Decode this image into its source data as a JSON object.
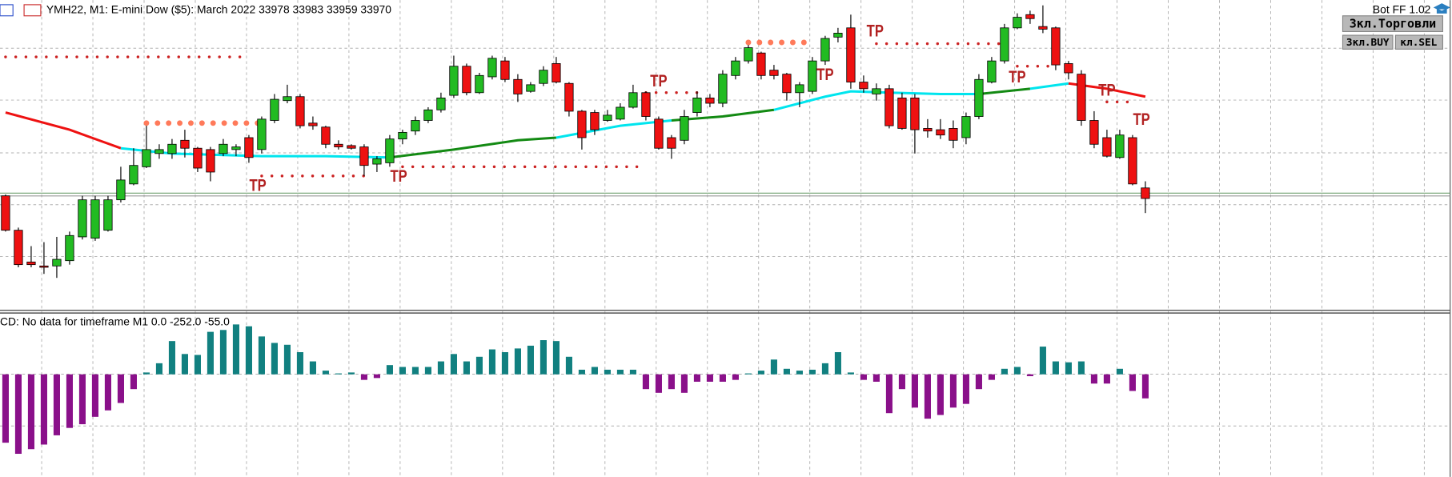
{
  "chart_data": {
    "type": "candlestick",
    "title": "YMH22, M1:  E-mini Dow ($5): March 2022  33978 33983 33959 33970",
    "bot_label": "Bot FF 1.02",
    "buttons": [
      "Зкл.Торговли",
      "Зкл.BUY",
      "кл.SEL"
    ],
    "indicator_label": "CD: No data for timeframe M1 0.0 -252.0 -55.0",
    "ylim": [
      33886,
      34120
    ],
    "open": [
      33972,
      33946,
      33922,
      33919,
      33919,
      33923,
      33941,
      33940,
      33946,
      33969,
      33981,
      33994,
      34004,
      34004,
      34014,
      34008,
      34007,
      34004,
      34007,
      34016,
      34007,
      34029,
      34044,
      34047,
      34027,
      34024,
      34011,
      34010,
      34009,
      33996,
      33997,
      34015,
      34021,
      34029,
      34037,
      34048,
      34070,
      34050,
      34062,
      34074,
      34060,
      34051,
      34057,
      34072,
      34057,
      34036,
      34035,
      34029,
      34030,
      34039,
      34050,
      34030,
      34016,
      34014,
      34035,
      34046,
      34042,
      34063,
      34074,
      34080,
      34067,
      34064,
      34050,
      34051,
      34074,
      34092,
      34099,
      34058,
      34049,
      34053,
      34046,
      34046,
      34023,
      34022,
      34023,
      34016,
      34032,
      34058,
      34074,
      34099,
      34109,
      34100,
      34099,
      34072,
      34064,
      34029,
      34016,
      34001,
      34016,
      33978
    ],
    "high": [
      33973,
      33948,
      33934,
      33937,
      33941,
      33945,
      33972,
      33972,
      33972,
      33994,
      34008,
      34025,
      34011,
      34015,
      34022,
      34009,
      34009,
      34015,
      34011,
      34018,
      34032,
      34049,
      34056,
      34049,
      34032,
      34025,
      34014,
      34011,
      34011,
      34002,
      34018,
      34022,
      34032,
      34039,
      34050,
      34078,
      34072,
      34065,
      34078,
      34077,
      34064,
      34058,
      34070,
      34077,
      34058,
      34037,
      34037,
      34037,
      34042,
      34056,
      34051,
      34032,
      34018,
      34037,
      34051,
      34049,
      34067,
      34077,
      34086,
      34081,
      34071,
      34065,
      34058,
      34077,
      34093,
      34099,
      34109,
      34063,
      34057,
      34056,
      34050,
      34049,
      34030,
      34030,
      34029,
      34035,
      34064,
      34077,
      34102,
      34110,
      34112,
      34116,
      34100,
      34074,
      34067,
      34036,
      34022,
      34022,
      34018,
      33983
    ],
    "low": [
      33945,
      33918,
      33918,
      33913,
      33910,
      33920,
      33939,
      33938,
      33945,
      33967,
      33980,
      33993,
      34000,
      34000,
      34001,
      33990,
      33983,
      34002,
      34002,
      33997,
      34004,
      34027,
      34042,
      34023,
      34022,
      34008,
      34007,
      34007,
      33987,
      33990,
      33994,
      34011,
      34018,
      34027,
      34035,
      34046,
      34048,
      34049,
      34060,
      34058,
      34043,
      34050,
      34055,
      34057,
      34032,
      34007,
      34018,
      34028,
      34029,
      34038,
      34029,
      34007,
      34000,
      34011,
      34032,
      34039,
      34039,
      34060,
      34072,
      34060,
      34060,
      34044,
      34039,
      34049,
      34071,
      34088,
      34053,
      34050,
      34044,
      34023,
      34022,
      34004,
      34016,
      34015,
      34008,
      34011,
      34030,
      34057,
      34072,
      34098,
      34102,
      34095,
      34067,
      34060,
      34025,
      34008,
      34001,
      34000,
      33980,
      33959
    ],
    "close": [
      33946,
      33920,
      33920,
      33918,
      33924,
      33942,
      33969,
      33969,
      33969,
      33984,
      33995,
      34007,
      34007,
      34011,
      34008,
      33993,
      33990,
      34011,
      34009,
      34001,
      34030,
      34045,
      34047,
      34025,
      34025,
      34011,
      34009,
      34008,
      33995,
      34000,
      34015,
      34020,
      34029,
      34037,
      34046,
      34070,
      34050,
      34063,
      34076,
      34060,
      34049,
      34056,
      34067,
      34058,
      34036,
      34016,
      34022,
      34033,
      34039,
      34050,
      34032,
      34008,
      34008,
      34032,
      34046,
      34042,
      34064,
      34074,
      34084,
      34063,
      34063,
      34050,
      34056,
      34074,
      34091,
      34095,
      34058,
      34053,
      34053,
      34025,
      34023,
      34022,
      34021,
      34018,
      34014,
      34032,
      34060,
      34074,
      34099,
      34107,
      34106,
      34098,
      34071,
      34065,
      34029,
      34011,
      34002,
      34018,
      33981,
      33970
    ],
    "up_color": "#22bb22",
    "down_color": "#ee1111",
    "lines": [
      {
        "color": "#ee1111",
        "x": [
          0,
          5,
          9
        ],
        "values": [
          34035,
          34022,
          34008
        ]
      },
      {
        "color": "#00e5ee",
        "x": [
          9,
          13,
          20,
          25,
          30
        ],
        "values": [
          34008,
          34004,
          34002,
          34002,
          34001
        ]
      },
      {
        "color": "#138a13",
        "x": [
          30,
          35,
          40,
          43
        ],
        "values": [
          34001,
          34007,
          34014,
          34016
        ]
      },
      {
        "color": "#00e5ee",
        "x": [
          43,
          48,
          52
        ],
        "values": [
          34016,
          34025,
          34029
        ]
      },
      {
        "color": "#138a13",
        "x": [
          52,
          56,
          60
        ],
        "values": [
          34029,
          34032,
          34037
        ]
      },
      {
        "color": "#00e5ee",
        "x": [
          60,
          64,
          66,
          69,
          73,
          76
        ],
        "values": [
          34037,
          34047,
          34051,
          34050,
          34049,
          34049
        ]
      },
      {
        "color": "#138a13",
        "x": [
          76,
          80
        ],
        "values": [
          34049,
          34053
        ]
      },
      {
        "color": "#00e5ee",
        "x": [
          80,
          83
        ],
        "values": [
          34053,
          34057
        ]
      },
      {
        "color": "#ee1111",
        "x": [
          83,
          86,
          89
        ],
        "values": [
          34057,
          34053,
          34047
        ]
      }
    ],
    "levels": [
      {
        "value": 34077,
        "from": 0,
        "to": 19,
        "color": "#cc2222"
      },
      {
        "value": 34027,
        "from": 11,
        "to": 20,
        "color": "#ff7a5a"
      },
      {
        "value": 33987,
        "from": 20,
        "to": 28,
        "color": "#cc2222"
      },
      {
        "value": 33994,
        "from": 31,
        "to": 50,
        "color": "#cc2222"
      },
      {
        "value": 34050,
        "from": 50,
        "to": 54,
        "color": "#cc2222"
      },
      {
        "value": 34088,
        "from": 58,
        "to": 63,
        "color": "#ff7a5a"
      },
      {
        "value": 34087,
        "from": 68,
        "to": 78,
        "color": "#cc2222"
      },
      {
        "value": 34070,
        "from": 79,
        "to": 82,
        "color": "#cc2222"
      },
      {
        "value": 34043,
        "from": 86,
        "to": 88,
        "color": "#cc2222"
      }
    ],
    "hline": {
      "value": 33973,
      "color": "#6f9f6f"
    },
    "annotations": [
      {
        "text": "TP",
        "x": 19.7,
        "y": 33979
      },
      {
        "text": "TP",
        "x": 30.7,
        "y": 33986
      },
      {
        "text": "TP",
        "x": 51,
        "y": 34058
      },
      {
        "text": "TP",
        "x": 64,
        "y": 34063
      },
      {
        "text": "TP",
        "x": 67.9,
        "y": 34096
      },
      {
        "text": "TP",
        "x": 79,
        "y": 34061
      },
      {
        "text": "TP",
        "x": 86,
        "y": 34051
      },
      {
        "text": "TP",
        "x": 88.7,
        "y": 34029
      }
    ],
    "macd": {
      "ylim": [
        -300,
        190
      ],
      "pos_color": "#118080",
      "neg_color": "#8a108a",
      "values": [
        -222,
        -258,
        -243,
        -228,
        -198,
        -174,
        -162,
        -138,
        -117,
        -93,
        -48,
        6,
        36,
        108,
        66,
        63,
        138,
        144,
        162,
        156,
        123,
        102,
        96,
        72,
        42,
        12,
        3,
        6,
        -18,
        -12,
        30,
        24,
        24,
        24,
        42,
        66,
        42,
        57,
        81,
        72,
        84,
        93,
        111,
        108,
        57,
        15,
        24,
        15,
        15,
        15,
        -48,
        -60,
        -48,
        -60,
        -24,
        -24,
        -24,
        -18,
        3,
        12,
        48,
        18,
        12,
        15,
        36,
        72,
        6,
        -18,
        -24,
        -126,
        -48,
        -108,
        -144,
        -132,
        -108,
        -96,
        -48,
        -18,
        18,
        24,
        -6,
        90,
        42,
        39,
        42,
        -30,
        -30,
        18,
        -54,
        -78
      ]
    }
  }
}
